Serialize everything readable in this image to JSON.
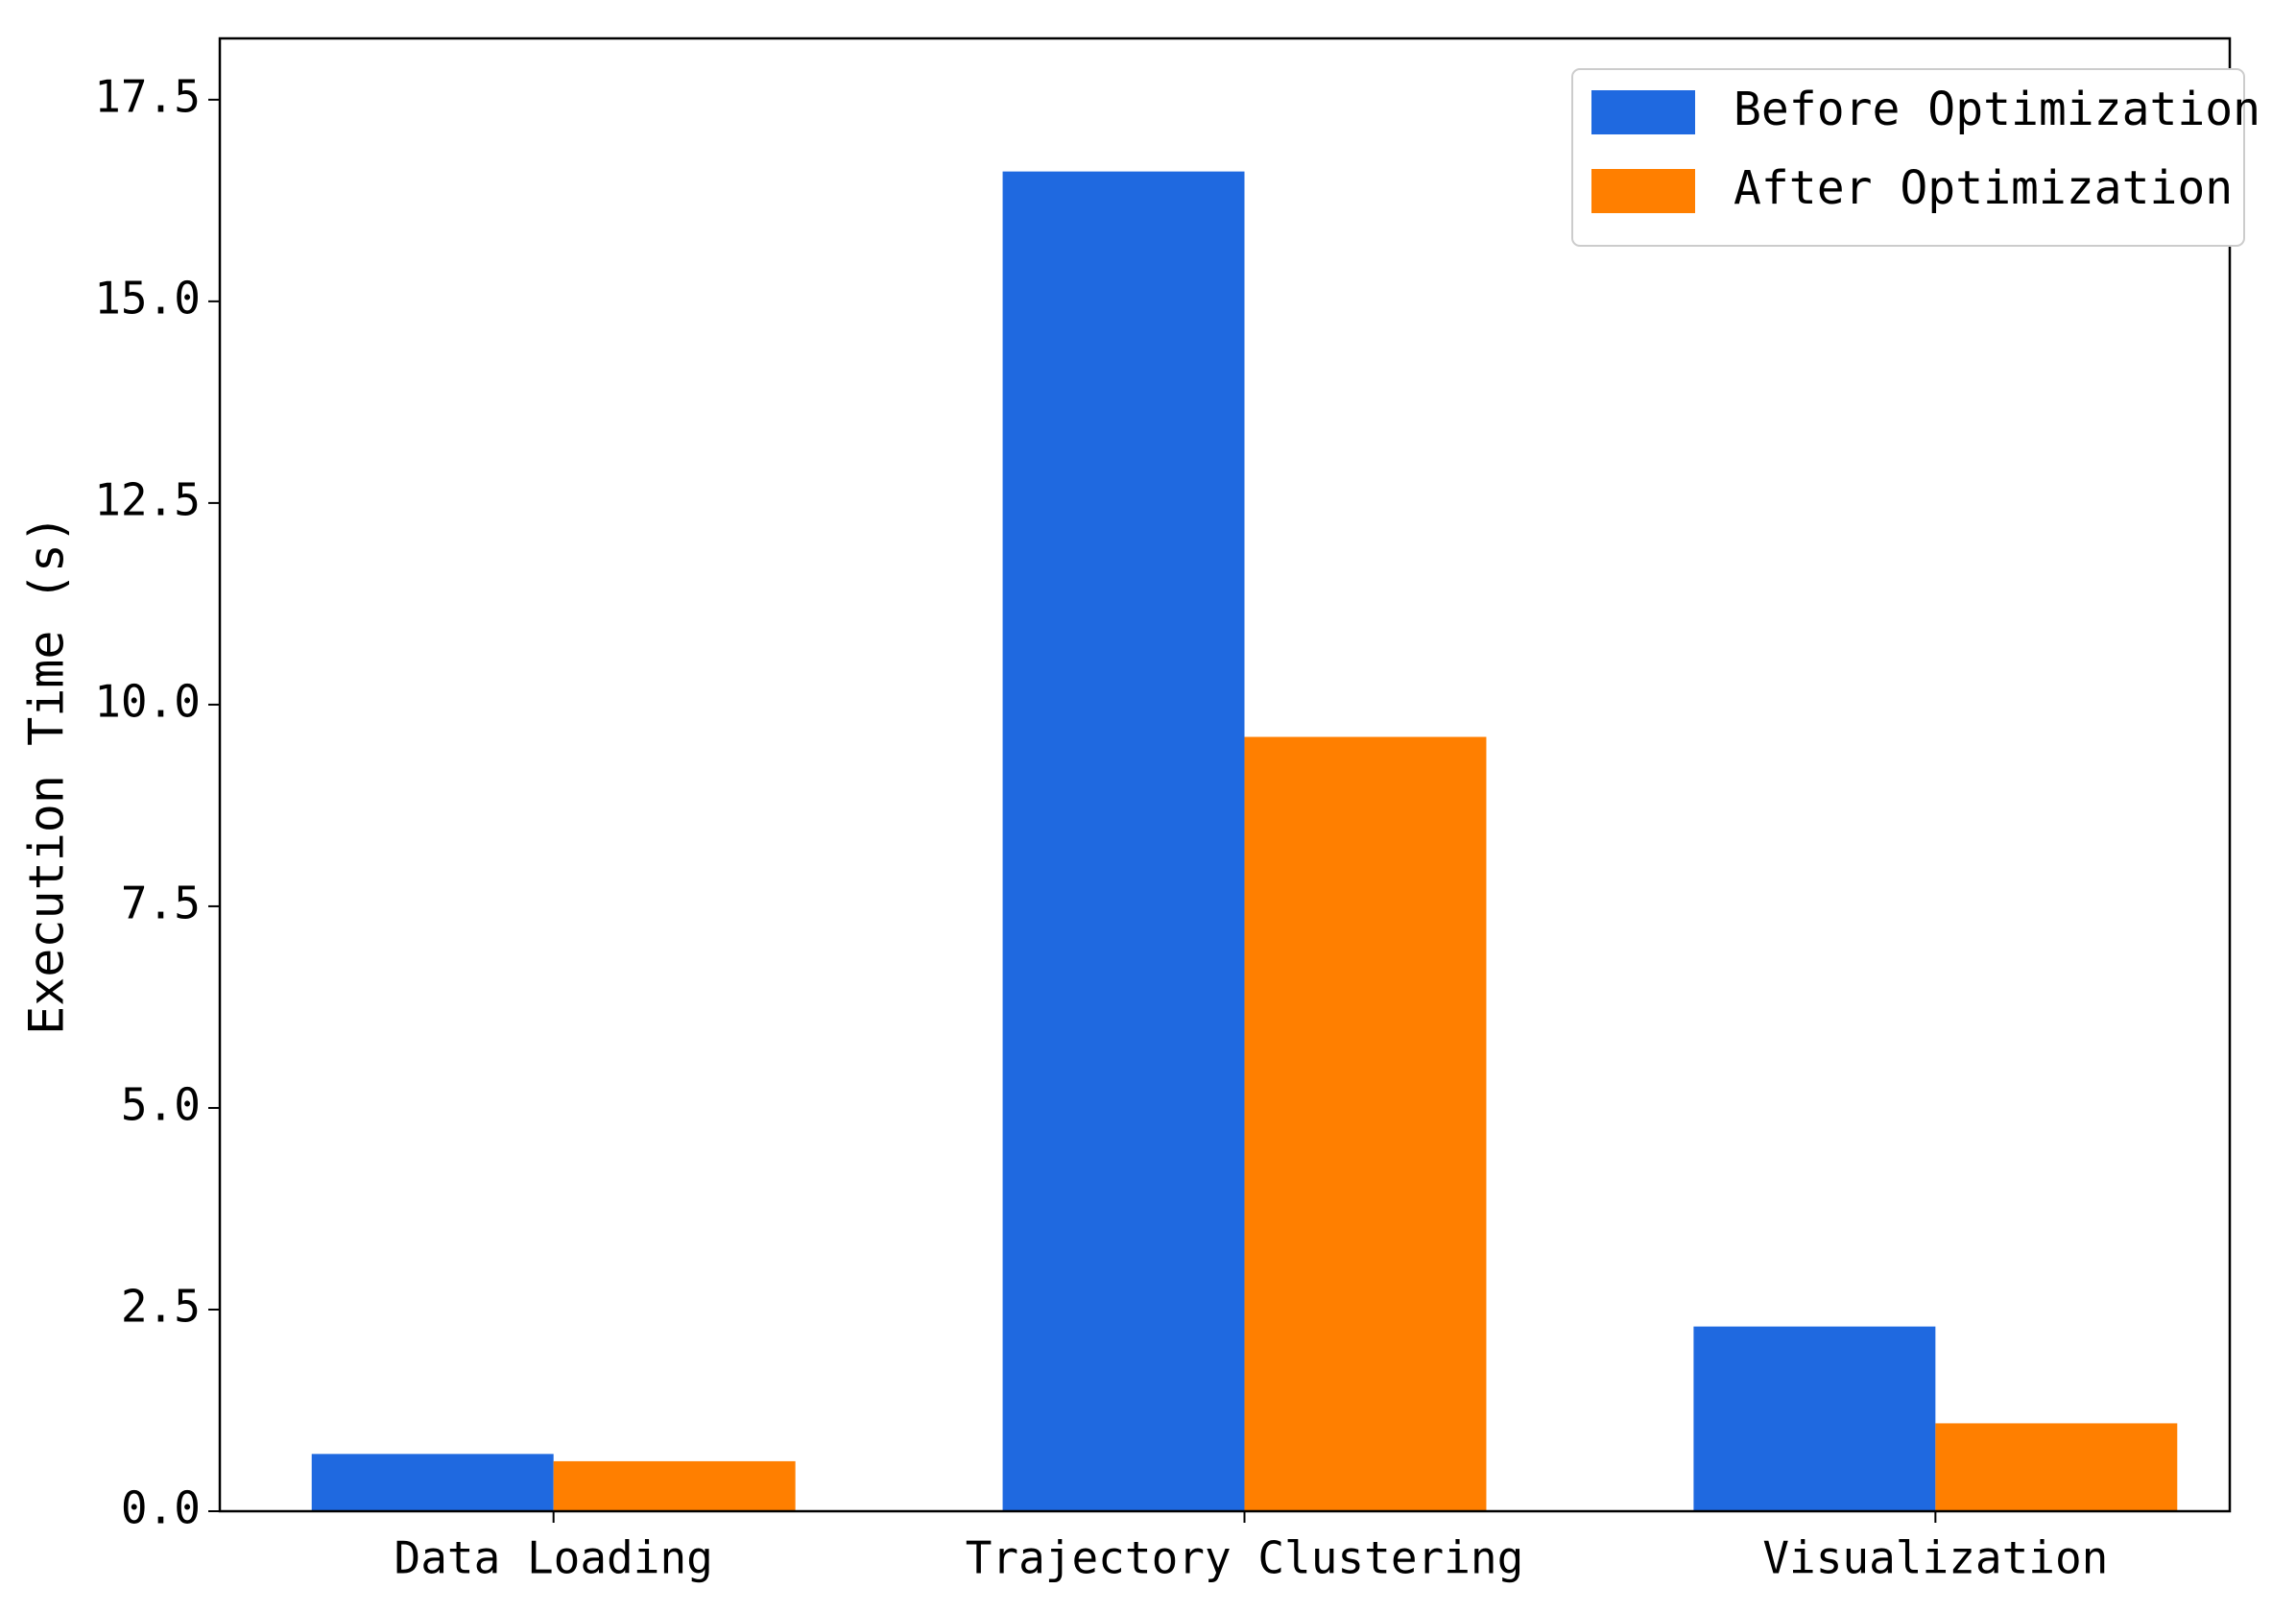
{
  "chart_data": {
    "type": "bar",
    "y_label": "Execution Time (s)",
    "categories": [
      "Data Loading",
      "Trajectory Clustering",
      "Visualization"
    ],
    "series": [
      {
        "name": "Before Optimization",
        "color": "#1f69e0",
        "values": [
          0.71,
          16.61,
          2.29
        ]
      },
      {
        "name": "After Optimization",
        "color": "#ff7f00",
        "values": [
          0.62,
          9.6,
          1.09
        ]
      }
    ],
    "ylim": [
      0,
      18.26
    ],
    "yticks": [
      {
        "value": 0,
        "label": "0.0"
      },
      2.5,
      {
        "value": 5,
        "label": "5.0"
      },
      7.5,
      {
        "value": 10,
        "label": "10.0"
      },
      12.5,
      {
        "value": 15,
        "label": "15.0"
      },
      17.5
    ],
    "grid": false,
    "legend": "upper right"
  }
}
